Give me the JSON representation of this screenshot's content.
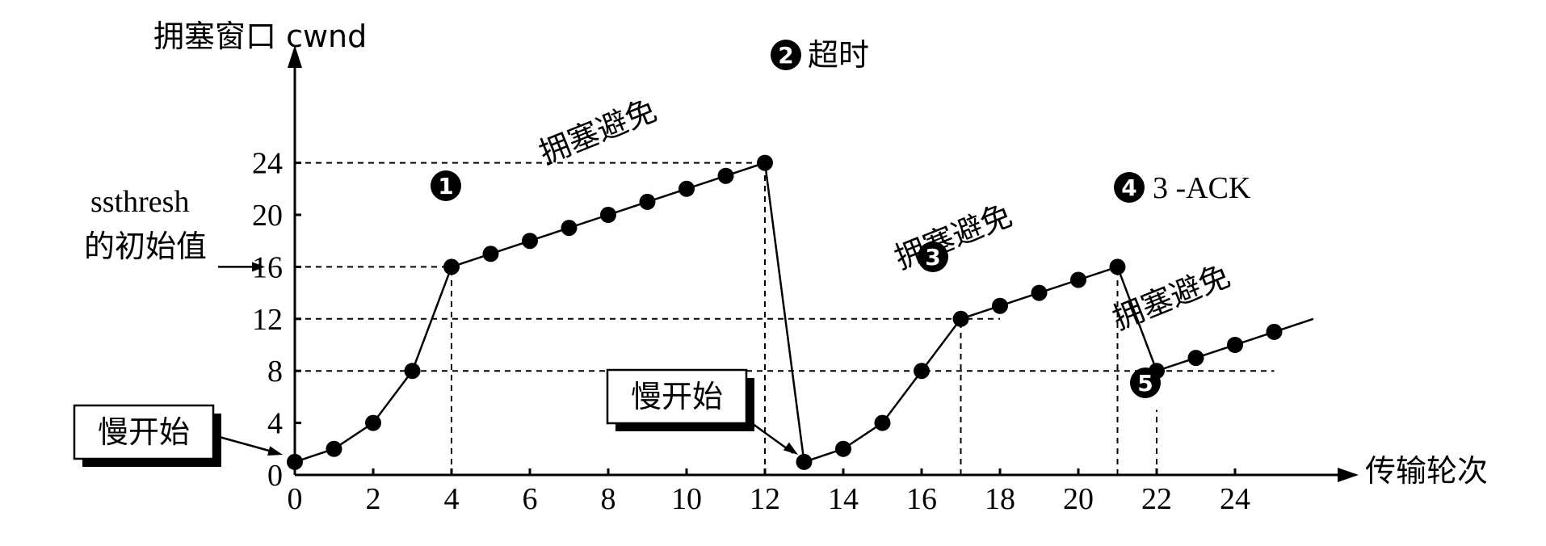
{
  "chart_data": {
    "type": "line",
    "ylabel": "拥塞窗口  cwnd",
    "xlabel": "传输轮次",
    "x_ticks": [
      0,
      2,
      4,
      6,
      8,
      10,
      12,
      14,
      16,
      18,
      20,
      22,
      24
    ],
    "y_ticks": [
      0,
      4,
      8,
      12,
      16,
      20,
      24
    ],
    "xlim": [
      0,
      26
    ],
    "ylim": [
      0,
      24
    ],
    "series": [
      {
        "x": [
          0,
          1,
          2,
          3,
          4,
          5,
          6,
          7,
          8,
          9,
          10,
          11,
          12,
          13,
          14,
          15,
          16,
          17,
          18,
          19,
          20,
          21,
          22,
          23,
          24,
          25,
          26
        ],
        "y": [
          1,
          2,
          4,
          8,
          16,
          17,
          18,
          19,
          20,
          21,
          22,
          23,
          24,
          1,
          2,
          4,
          8,
          12,
          13,
          14,
          15,
          16,
          8,
          9,
          10,
          11,
          12
        ]
      }
    ],
    "ssthresh_label": [
      "ssthresh",
      "的初始值"
    ],
    "phase_labels": [
      {
        "text": "拥塞避免"
      },
      {
        "text": "拥塞避免"
      },
      {
        "text": "拥塞避免"
      }
    ],
    "slow_start_boxes": [
      {
        "text": "慢开始"
      },
      {
        "text": "慢开始"
      }
    ],
    "events": [
      {
        "number": "1",
        "text": ""
      },
      {
        "number": "2",
        "text": "超时"
      },
      {
        "number": "3",
        "text": ""
      },
      {
        "number": "4",
        "text": "3 -ACK"
      },
      {
        "number": "5",
        "text": ""
      }
    ]
  }
}
